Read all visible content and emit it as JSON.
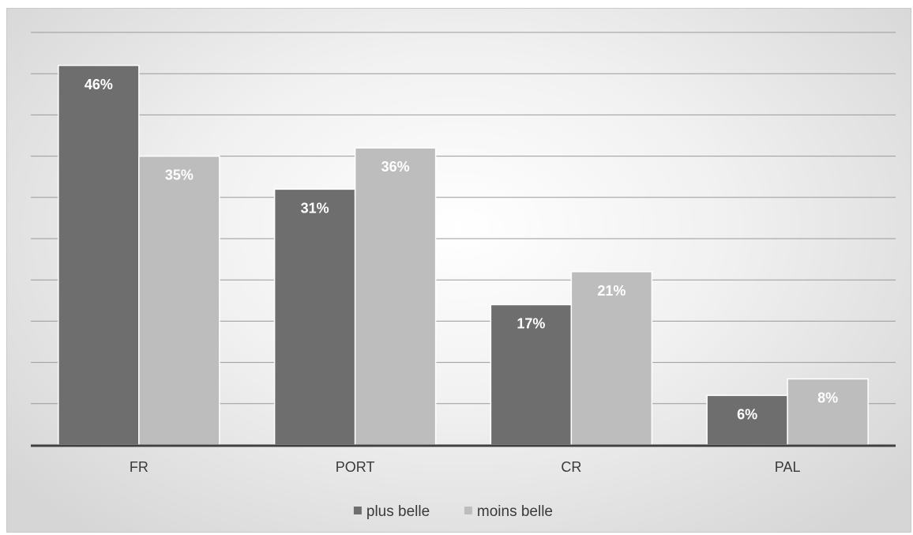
{
  "chart_data": {
    "type": "bar",
    "categories": [
      "FR",
      "PORT",
      "CR",
      "PAL"
    ],
    "series": [
      {
        "name": "plus belle",
        "color": "#6e6e6e",
        "values": [
          46,
          31,
          17,
          6
        ],
        "labels": [
          "46%",
          "31%",
          "17%",
          "6%"
        ]
      },
      {
        "name": "moins belle",
        "color": "#bdbdbd",
        "values": [
          35,
          36,
          21,
          8
        ],
        "labels": [
          "35%",
          "36%",
          "21%",
          "8%"
        ]
      }
    ],
    "title": "",
    "xlabel": "",
    "ylabel": "",
    "ylim": [
      0,
      50
    ],
    "gridlines": true,
    "grid_step": 5,
    "legend_position": "bottom",
    "value_format": "percent"
  }
}
